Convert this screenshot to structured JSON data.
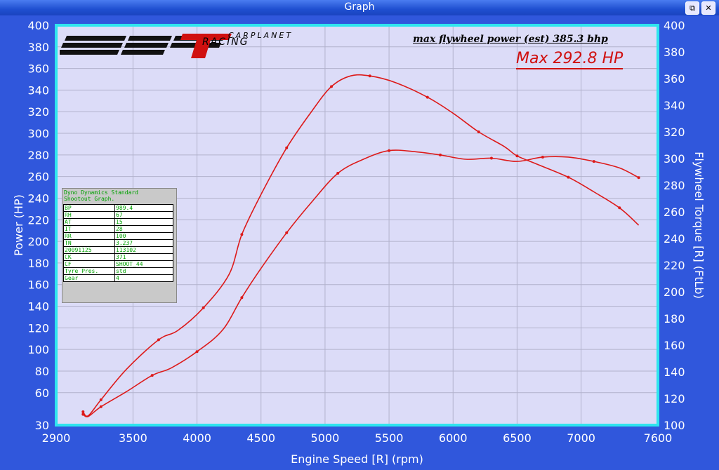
{
  "window": {
    "title": "Graph",
    "restore_glyph": "⧉",
    "close_glyph": "✕"
  },
  "logo": {
    "sub": "CARPLANET",
    "racing": "RACING"
  },
  "header": {
    "flywheel_note": "max flywheel power (est) 385.3 bhp",
    "max_hp": "Max 292.8 HP"
  },
  "info_box": {
    "title_lines": [
      "Dyno Dynamics Standard",
      "Shootout Graph."
    ],
    "rows": [
      [
        "BP",
        "989.4"
      ],
      [
        "RH",
        "67"
      ],
      [
        "AT",
        "15"
      ],
      [
        "IT",
        "28"
      ],
      [
        "RR",
        "100"
      ],
      [
        "TN",
        "3.237"
      ],
      [
        "20091125",
        "113102"
      ],
      [
        "CK",
        "371"
      ],
      [
        "CF",
        "SHOOT_44"
      ],
      [
        "Tyre Pres.",
        "std"
      ],
      [
        "Gear",
        "4"
      ]
    ]
  },
  "colors": {
    "plot_bg": "#dcdcf8",
    "frame": "#2fe5ee",
    "grid": "#b2b2cc",
    "curve": "#dd1a1a",
    "window_bg": "#3057dc"
  },
  "chart_data": {
    "type": "line",
    "xlabel": "Engine Speed [R] (rpm)",
    "ylabel_left": "Power (HP)",
    "ylabel_right": "Flywheel Torque [R] (FtLb)",
    "xlim": [
      2900,
      7600
    ],
    "x_ticks": [
      2900,
      3500,
      4000,
      4500,
      5000,
      5500,
      6000,
      6500,
      7000,
      7600
    ],
    "ylim_left": [
      30,
      400
    ],
    "y_ticks_left": [
      30,
      60,
      80,
      100,
      120,
      140,
      160,
      180,
      200,
      220,
      240,
      260,
      280,
      300,
      320,
      340,
      360,
      380,
      400
    ],
    "ylim_right": [
      100,
      400
    ],
    "y_ticks_right": [
      100,
      120,
      140,
      160,
      180,
      200,
      220,
      240,
      260,
      280,
      300,
      320,
      340,
      360,
      380,
      400
    ],
    "grid": true,
    "series": [
      {
        "axis": "right",
        "x": [
          3110,
          3150,
          3250,
          3450,
          3700,
          3850,
          4050,
          4250,
          4350,
          4500,
          4700,
          4900,
          5050,
          5200,
          5350,
          5550,
          5800,
          6000,
          6200,
          6400,
          6500,
          6650,
          6900,
          7100,
          7300,
          7450
        ],
        "y": [
          110,
          107,
          119,
          142,
          164,
          171,
          188,
          213,
          243,
          273,
          308,
          336,
          354,
          362,
          362,
          357,
          346,
          334,
          320,
          309,
          302,
          296,
          286,
          275,
          263,
          250
        ]
      },
      {
        "axis": "left",
        "x": [
          3110,
          3150,
          3250,
          3450,
          3650,
          3800,
          4000,
          4200,
          4350,
          4500,
          4700,
          4900,
          5100,
          5300,
          5500,
          5700,
          5900,
          6100,
          6300,
          6500,
          6700,
          6900,
          7100,
          7300,
          7450
        ],
        "y": [
          40,
          38,
          47,
          61,
          76,
          83,
          98,
          118,
          148,
          175,
          208,
          237,
          263,
          276,
          284,
          283,
          280,
          276,
          277,
          274,
          278,
          278,
          274,
          268,
          259
        ]
      }
    ]
  }
}
